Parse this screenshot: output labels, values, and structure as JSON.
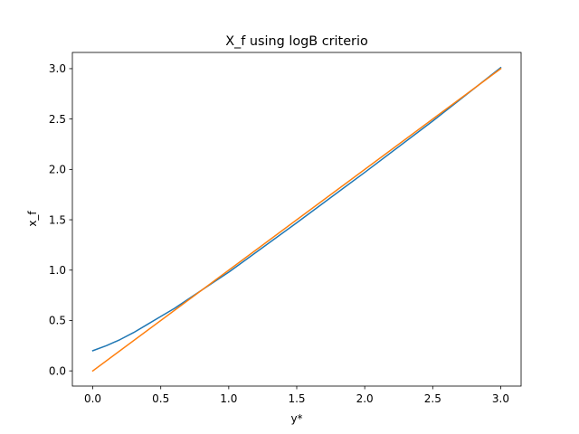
{
  "chart_data": {
    "type": "line",
    "title": "X_f using logB criterio",
    "xlabel": "y*",
    "ylabel": "x_f",
    "xlim": [
      -0.15,
      3.15
    ],
    "ylim": [
      -0.151,
      3.161
    ],
    "xticks": [
      0.0,
      0.5,
      1.0,
      1.5,
      2.0,
      2.5,
      3.0
    ],
    "xtick_labels": [
      "0.0",
      "0.5",
      "1.0",
      "1.5",
      "2.0",
      "2.5",
      "3.0"
    ],
    "yticks": [
      0.0,
      0.5,
      1.0,
      1.5,
      2.0,
      2.5,
      3.0
    ],
    "ytick_labels": [
      "0.0",
      "0.5",
      "1.0",
      "1.5",
      "2.0",
      "2.5",
      "3.0"
    ],
    "grid": false,
    "legend": "none",
    "series": [
      {
        "color": "#1f77b4",
        "x": [
          0.0,
          0.1,
          0.2,
          0.3,
          0.4,
          0.5,
          0.6,
          0.8,
          1.0,
          1.5,
          2.0,
          2.5,
          3.0
        ],
        "y": [
          0.2,
          0.25,
          0.31,
          0.38,
          0.46,
          0.54,
          0.62,
          0.8,
          0.98,
          1.47,
          1.97,
          2.48,
          3.01
        ]
      },
      {
        "color": "#ff7f0e",
        "x": [
          0.0,
          3.0
        ],
        "y": [
          0.0,
          3.0
        ]
      }
    ]
  }
}
